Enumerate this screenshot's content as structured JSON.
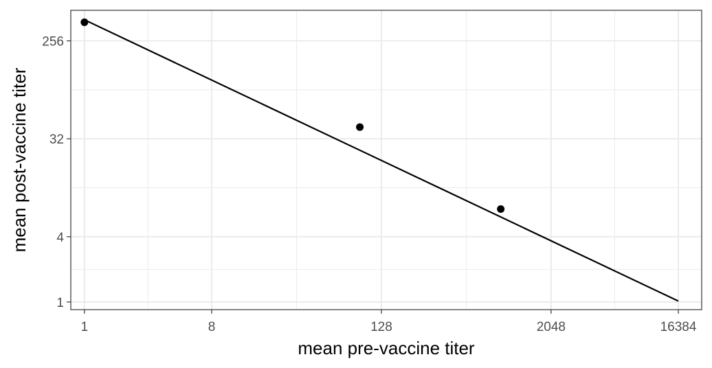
{
  "chart_data": {
    "type": "scatter",
    "xlabel": "mean pre-vaccine titer",
    "ylabel": "mean post-vaccine titer",
    "x_scale": "log2",
    "y_scale": "log2",
    "xlim": [
      0.8,
      24000
    ],
    "ylim": [
      0.85,
      490
    ],
    "x_ticks": [
      1,
      8,
      128,
      2048,
      16384
    ],
    "x_tick_labels": [
      "1",
      "8",
      "128",
      "2048",
      "16384"
    ],
    "y_ticks": [
      1,
      4,
      32,
      256
    ],
    "y_tick_labels": [
      "1",
      "4",
      "32",
      "256"
    ],
    "grid": true,
    "legend": "none",
    "series": [
      {
        "kind": "points",
        "x": [
          1,
          90,
          900
        ],
        "y": [
          380,
          41,
          7.2
        ]
      },
      {
        "kind": "fit-line",
        "x": [
          1,
          16384
        ],
        "y": [
          400,
          1.02
        ]
      }
    ],
    "colors": {
      "points": "#000000",
      "line": "#000000",
      "grid": "#ebebeb",
      "panel_border": "#333333"
    }
  }
}
